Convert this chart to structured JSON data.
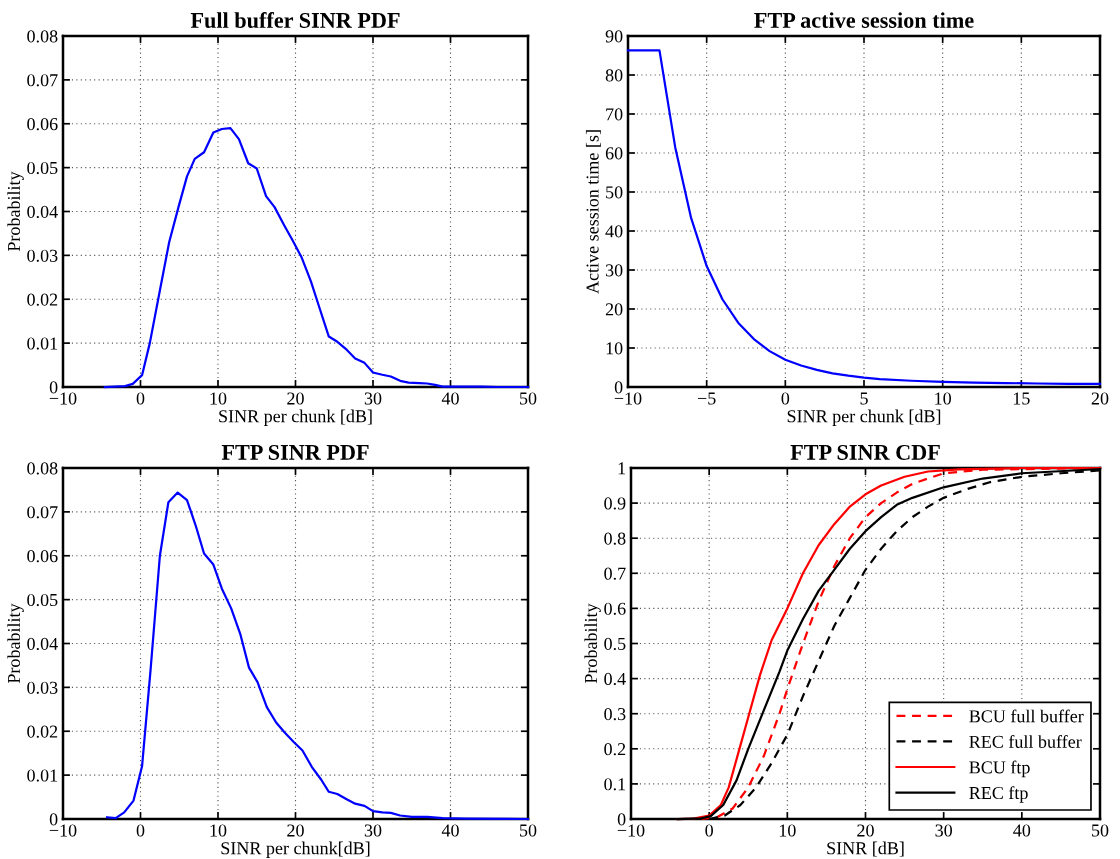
{
  "chart_data": [
    {
      "type": "line",
      "title": "Full buffer SINR PDF",
      "xlabel": "SINR per chunk [dB]",
      "ylabel": "Probability",
      "xlim": [
        -10,
        50
      ],
      "ylim": [
        0,
        0.08
      ],
      "xticks": [
        -10,
        0,
        10,
        20,
        30,
        40,
        50
      ],
      "yticks": [
        0,
        0.01,
        0.02,
        0.03,
        0.04,
        0.05,
        0.06,
        0.07,
        0.08
      ],
      "grid": true,
      "legend": false,
      "series": [
        {
          "color": "#0000ff",
          "line_style": "solid",
          "x": [
            -4.6,
            -2,
            -1,
            0.2,
            1.2,
            2.5,
            3.7,
            4.9,
            6,
            7,
            8.2,
            9.4,
            10.5,
            11.6,
            12.7,
            13.9,
            15,
            16.2,
            17.3,
            18.5,
            19.6,
            20.8,
            22,
            23.1,
            24.3,
            25.4,
            26.6,
            27.7,
            28.9,
            30,
            31.2,
            32.3,
            33.5,
            34.6,
            36,
            37,
            38,
            39,
            40,
            42,
            44,
            46,
            50
          ],
          "values": [
            0,
            0.0002,
            0.0007,
            0.0027,
            0.01,
            0.022,
            0.033,
            0.041,
            0.048,
            0.052,
            0.0535,
            0.058,
            0.0588,
            0.059,
            0.0565,
            0.051,
            0.0498,
            0.0435,
            0.041,
            0.037,
            0.0335,
            0.0295,
            0.024,
            0.018,
            0.0115,
            0.0103,
            0.0085,
            0.0065,
            0.0055,
            0.0033,
            0.0028,
            0.0024,
            0.0014,
            0.001,
            0.0009,
            0.0008,
            0.0005,
            0.0001,
            0.0001,
            0.0001,
            0.0001,
            0,
            0
          ]
        }
      ]
    },
    {
      "type": "line",
      "title": "FTP active session time",
      "xlabel": "SINR per chunk [dB]",
      "ylabel": "Active session time [s]",
      "xlim": [
        -10,
        20
      ],
      "ylim": [
        0,
        90
      ],
      "xticks": [
        -10,
        -5,
        0,
        5,
        10,
        15,
        20
      ],
      "yticks": [
        0,
        10,
        20,
        30,
        40,
        50,
        60,
        70,
        80,
        90
      ],
      "grid": true,
      "legend": false,
      "series": [
        {
          "color": "#0000ff",
          "line_style": "solid",
          "x": [
            -10,
            -8,
            -7,
            -6,
            -5,
            -4,
            -3,
            -2,
            -1,
            0,
            1,
            2,
            3,
            4,
            5,
            6,
            8,
            10,
            12,
            14,
            16,
            18,
            20
          ],
          "values": [
            86.3,
            86.3,
            61.5,
            43.5,
            31,
            22.5,
            16.5,
            12.3,
            9.2,
            7,
            5.5,
            4.4,
            3.5,
            2.9,
            2.4,
            2.0,
            1.6,
            1.3,
            1.1,
            1.0,
            0.9,
            0.8,
            0.8
          ]
        }
      ]
    },
    {
      "type": "line",
      "title": "FTP SINR PDF",
      "xlabel": "SINR per chunk[dB]",
      "ylabel": "Probability",
      "xlim": [
        -10,
        50
      ],
      "ylim": [
        0,
        0.08
      ],
      "xticks": [
        -10,
        0,
        10,
        20,
        30,
        40,
        50
      ],
      "yticks": [
        0,
        0.01,
        0.02,
        0.03,
        0.04,
        0.05,
        0.06,
        0.07,
        0.08
      ],
      "grid": true,
      "legend": false,
      "series": [
        {
          "color": "#0000ff",
          "line_style": "solid",
          "x": [
            -4.3,
            -3.2,
            -2.1,
            -0.9,
            0.2,
            1.3,
            2.5,
            3.6,
            4.8,
            6,
            7.1,
            8.2,
            9.4,
            10.5,
            11.7,
            12.9,
            14,
            15.1,
            16.3,
            17.5,
            18.6,
            19.8,
            20.9,
            22.1,
            23.3,
            24.3,
            25.4,
            26.6,
            27.7,
            28.9,
            30,
            31.2,
            32.3,
            33.5,
            35,
            37,
            39,
            42,
            50
          ],
          "values": [
            0.0004,
            0.0002,
            0.0015,
            0.0042,
            0.012,
            0.034,
            0.06,
            0.0722,
            0.0744,
            0.0727,
            0.067,
            0.0605,
            0.058,
            0.0525,
            0.048,
            0.042,
            0.0345,
            0.0312,
            0.0255,
            0.022,
            0.0197,
            0.0175,
            0.0156,
            0.0119,
            0.009,
            0.0062,
            0.0057,
            0.0045,
            0.0035,
            0.003,
            0.0018,
            0.0015,
            0.0014,
            0.0008,
            0.0005,
            0.0005,
            0.0002,
            0.0001,
            0
          ]
        }
      ]
    },
    {
      "type": "line",
      "title": "FTP SINR CDF",
      "xlabel": "SINR [dB]",
      "ylabel": "Probability",
      "xlim": [
        -10,
        50
      ],
      "ylim": [
        0,
        1
      ],
      "xticks": [
        -10,
        0,
        10,
        20,
        30,
        40,
        50
      ],
      "yticks": [
        0,
        0.1,
        0.2,
        0.3,
        0.4,
        0.5,
        0.6,
        0.7,
        0.8,
        0.9,
        1
      ],
      "grid": true,
      "legend": "bottom right",
      "series": [
        {
          "name": "BCU full buffer",
          "color": "#ff0000",
          "line_style": "dashed",
          "x": [
            -1,
            1,
            3,
            5,
            7,
            9,
            10,
            12,
            14,
            16,
            18,
            20,
            22,
            24,
            26,
            30,
            35,
            50
          ],
          "values": [
            0,
            0.005,
            0.03,
            0.09,
            0.18,
            0.3,
            0.37,
            0.5,
            0.62,
            0.72,
            0.8,
            0.86,
            0.9,
            0.93,
            0.955,
            0.985,
            0.995,
            1
          ]
        },
        {
          "name": "REC full buffer",
          "color": "#000000",
          "line_style": "dashed",
          "x": [
            0,
            2,
            4,
            6,
            8,
            10,
            12,
            14,
            16,
            18,
            20,
            22,
            24,
            26,
            28,
            30,
            33,
            36,
            40,
            45,
            50
          ],
          "values": [
            0,
            0.01,
            0.04,
            0.09,
            0.16,
            0.24,
            0.35,
            0.45,
            0.55,
            0.63,
            0.71,
            0.77,
            0.82,
            0.86,
            0.89,
            0.915,
            0.94,
            0.96,
            0.975,
            0.985,
            0.993
          ]
        },
        {
          "name": "BCU ftp",
          "color": "#ff0000",
          "line_style": "solid",
          "x": [
            -4,
            -2,
            0,
            1.5,
            2.5,
            3.5,
            5,
            6.5,
            8,
            10,
            12,
            14,
            16,
            18,
            20,
            22,
            25,
            28,
            32,
            40,
            50
          ],
          "values": [
            0,
            0.001,
            0.01,
            0.04,
            0.09,
            0.17,
            0.29,
            0.41,
            0.51,
            0.6,
            0.7,
            0.78,
            0.84,
            0.89,
            0.925,
            0.95,
            0.975,
            0.99,
            0.996,
            1,
            1
          ]
        },
        {
          "name": "REC ftp",
          "color": "#000000",
          "line_style": "solid",
          "x": [
            -4,
            -1,
            0.2,
            1.8,
            3.5,
            5,
            7,
            9,
            10,
            12,
            14,
            16,
            18,
            20,
            22,
            24,
            26,
            30,
            35,
            40,
            50
          ],
          "values": [
            0,
            0.002,
            0.008,
            0.04,
            0.11,
            0.2,
            0.31,
            0.42,
            0.48,
            0.57,
            0.65,
            0.71,
            0.77,
            0.82,
            0.86,
            0.895,
            0.915,
            0.945,
            0.97,
            0.985,
            0.997
          ]
        }
      ]
    }
  ]
}
